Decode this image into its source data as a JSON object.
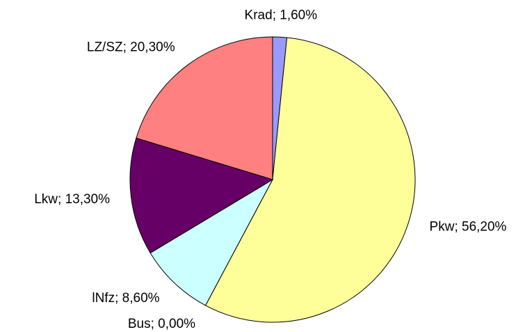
{
  "chart_data": {
    "type": "pie",
    "categories": [
      "Krad",
      "Pkw",
      "Bus",
      "lNfz",
      "Lkw",
      "LZ/SZ"
    ],
    "values": [
      1.6,
      56.2,
      0.0,
      8.6,
      13.3,
      20.3
    ],
    "value_labels": [
      "1,60%",
      "56,20%",
      "0,00%",
      "8,60%",
      "13,30%",
      "20,30%"
    ],
    "label_separator": "; ",
    "colors": [
      "#9999ff",
      "#ffff99",
      "#ffffff",
      "#ccffff",
      "#660066",
      "#ff8080"
    ]
  }
}
